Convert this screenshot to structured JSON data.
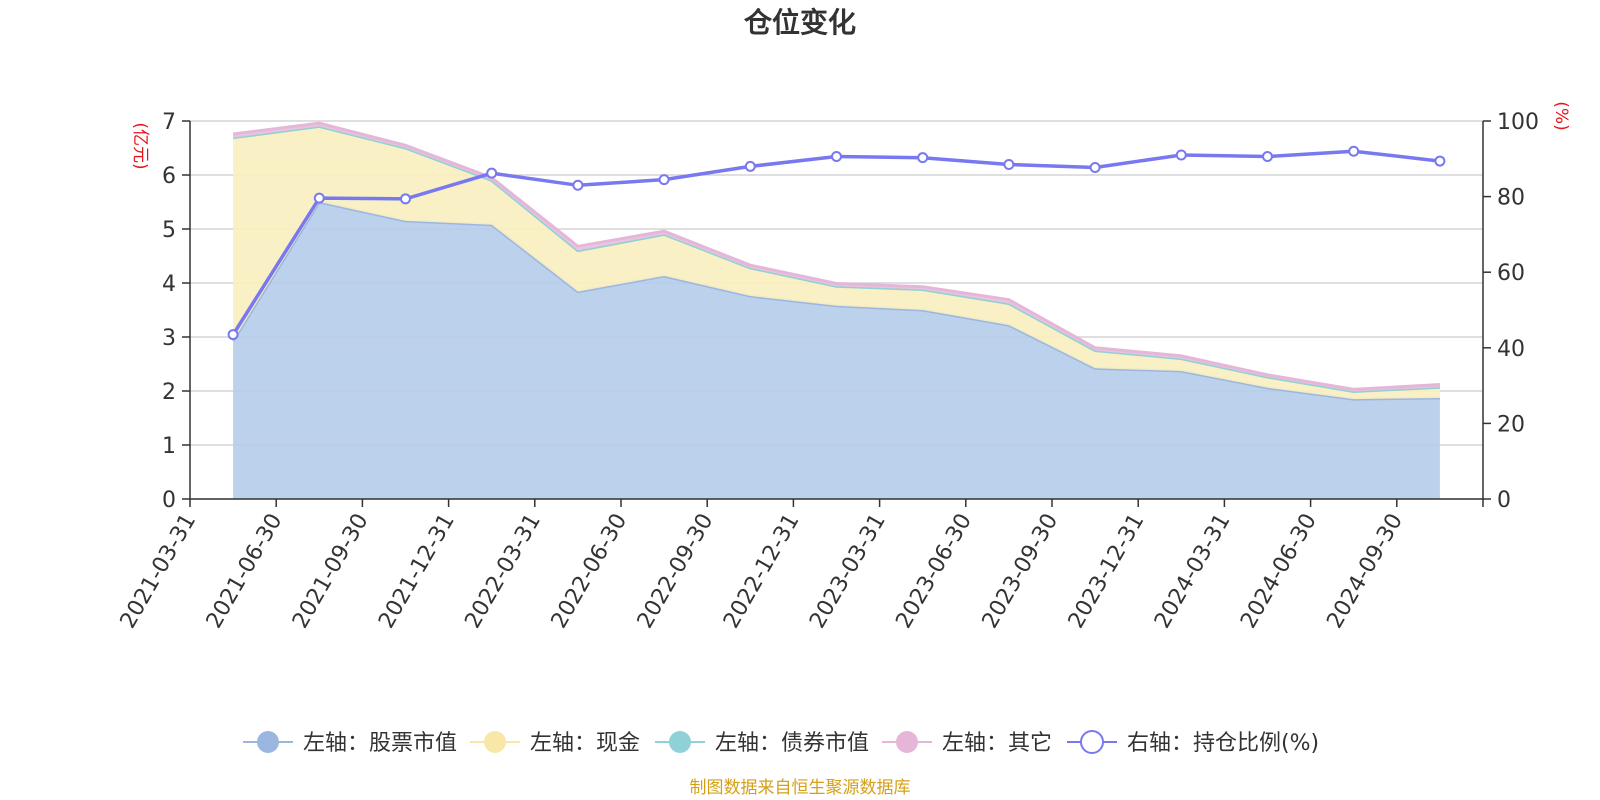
{
  "chart_data": {
    "type": "area",
    "title": "仓位变化",
    "source_note": "制图数据来自恒生聚源数据库",
    "left_axis": {
      "unit": "(亿元)",
      "ylim": [
        0,
        7
      ],
      "ticks": [
        "0",
        "1",
        "2",
        "3",
        "4",
        "5",
        "6",
        "7"
      ]
    },
    "right_axis": {
      "unit": "(%)",
      "ylim": [
        0,
        100
      ],
      "ticks": [
        "0",
        "20",
        "40",
        "60",
        "80",
        "100"
      ]
    },
    "categories": [
      "2021-03-31",
      "2021-06-30",
      "2021-09-30",
      "2021-12-31",
      "2022-03-31",
      "2022-06-30",
      "2022-09-30",
      "2022-12-31",
      "2023-03-31",
      "2023-06-30",
      "2023-09-30",
      "2023-12-31",
      "2024-03-31",
      "2024-06-30",
      "2024-09-30"
    ],
    "series": [
      {
        "name": "左轴：股票市值",
        "axis": "left",
        "kind": "area",
        "color": "#9bb7e0",
        "fill": "#b6cdea",
        "values": [
          2.93,
          5.5,
          5.15,
          5.08,
          3.84,
          4.13,
          3.76,
          3.58,
          3.5,
          3.22,
          2.42,
          2.37,
          2.06,
          1.85,
          1.87
        ]
      },
      {
        "name": "左轴：现金",
        "axis": "left",
        "kind": "area",
        "color": "#f8e7a6",
        "fill": "#faefc0",
        "values": [
          3.76,
          1.4,
          1.35,
          0.82,
          0.76,
          0.77,
          0.52,
          0.36,
          0.38,
          0.4,
          0.33,
          0.23,
          0.2,
          0.14,
          0.2
        ]
      },
      {
        "name": "左轴：债券市值",
        "axis": "left",
        "kind": "area",
        "color": "#8fd1d6",
        "fill": "#a8dde1",
        "values": [
          0,
          0,
          0,
          0,
          0,
          0,
          0,
          0,
          0,
          0,
          0,
          0,
          0,
          0,
          0
        ]
      },
      {
        "name": "左轴：其它",
        "axis": "left",
        "kind": "area",
        "color": "#e6b6d9",
        "fill": "#ecc3e0",
        "values": [
          0.07,
          0.06,
          0.05,
          0.05,
          0.08,
          0.06,
          0.05,
          0.05,
          0.05,
          0.07,
          0.05,
          0.05,
          0.04,
          0.04,
          0.05
        ]
      },
      {
        "name": "右轴：持仓比例(%)",
        "axis": "right",
        "kind": "line",
        "color": "#7878f0",
        "values": [
          43.5,
          79.6,
          79.4,
          86.2,
          83.0,
          84.5,
          88.0,
          90.6,
          90.3,
          88.5,
          87.7,
          91.0,
          90.6,
          92.0,
          89.4
        ]
      }
    ]
  }
}
